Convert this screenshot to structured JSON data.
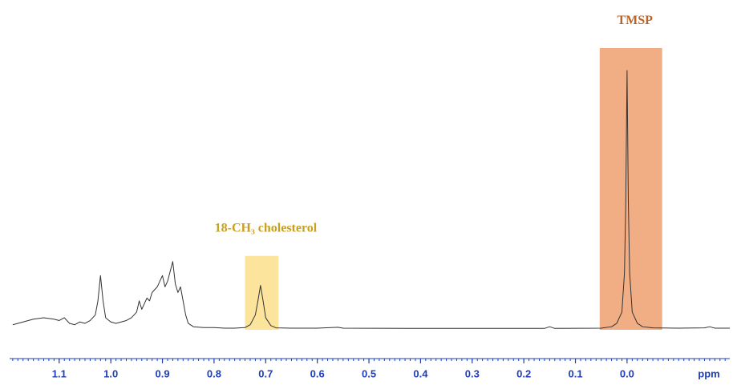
{
  "chart_data": {
    "type": "line",
    "xlabel": "ppm",
    "xlim": [
      1.196,
      -0.199
    ],
    "ylim": [
      0,
      100
    ],
    "xticks": [
      1.1,
      {
        "value": 1.0,
        "label": "1.0"
      },
      0.9,
      0.8,
      0.7,
      0.6,
      0.5,
      0.4,
      0.3,
      0.2,
      0.1,
      {
        "value": 0.0,
        "label": "0.0"
      }
    ],
    "minor_step": 0.01,
    "axis_color": "#1f3fb8",
    "color": "#333333",
    "x": [
      1.19,
      1.17,
      1.15,
      1.13,
      1.11,
      1.1,
      1.09,
      1.08,
      1.07,
      1.06,
      1.05,
      1.04,
      1.03,
      1.025,
      1.02,
      1.015,
      1.01,
      1.0,
      0.99,
      0.98,
      0.97,
      0.96,
      0.95,
      0.945,
      0.94,
      0.935,
      0.93,
      0.925,
      0.92,
      0.91,
      0.9,
      0.895,
      0.89,
      0.88,
      0.875,
      0.87,
      0.865,
      0.86,
      0.855,
      0.85,
      0.84,
      0.82,
      0.8,
      0.78,
      0.76,
      0.74,
      0.73,
      0.72,
      0.715,
      0.71,
      0.705,
      0.7,
      0.69,
      0.68,
      0.65,
      0.6,
      0.56,
      0.55,
      0.4,
      0.2,
      0.16,
      0.15,
      0.14,
      0.05,
      0.03,
      0.02,
      0.01,
      0.005,
      0.0025,
      0.0,
      -0.0025,
      -0.005,
      -0.01,
      -0.02,
      -0.03,
      -0.05,
      -0.1,
      -0.15,
      -0.16,
      -0.17,
      -0.199
    ],
    "values": [
      1.5,
      2.5,
      3.5,
      4,
      3.5,
      3,
      4,
      2,
      1.5,
      2.5,
      2,
      3,
      5,
      10,
      19,
      10,
      4,
      2.5,
      2,
      2.5,
      3,
      4,
      6,
      10,
      7,
      9,
      11,
      10,
      13,
      15,
      19,
      15,
      17,
      24,
      16,
      13,
      15,
      10,
      5,
      2,
      0.8,
      0.5,
      0.5,
      0.3,
      0.3,
      0.5,
      1.5,
      5,
      10,
      15.5,
      10,
      4,
      1.2,
      0.4,
      0.3,
      0.3,
      0.6,
      0.3,
      0.2,
      0.2,
      0.2,
      0.8,
      0.2,
      0.3,
      0.8,
      2,
      6,
      20,
      45,
      92,
      45,
      20,
      6,
      2,
      0.8,
      0.4,
      0.3,
      0.4,
      0.8,
      0.3,
      0.3
    ],
    "highlights": [
      {
        "label": "18-CH₃ cholesterol",
        "x": [
          0.74,
          0.675
        ],
        "top": 26,
        "color": "#fce49c",
        "label_color": "#c9a01e"
      },
      {
        "label": "TMSP",
        "x": [
          0.053,
          -0.068
        ],
        "top": 100,
        "color": "#f1ae84",
        "label_color": "#b8652c"
      }
    ]
  }
}
